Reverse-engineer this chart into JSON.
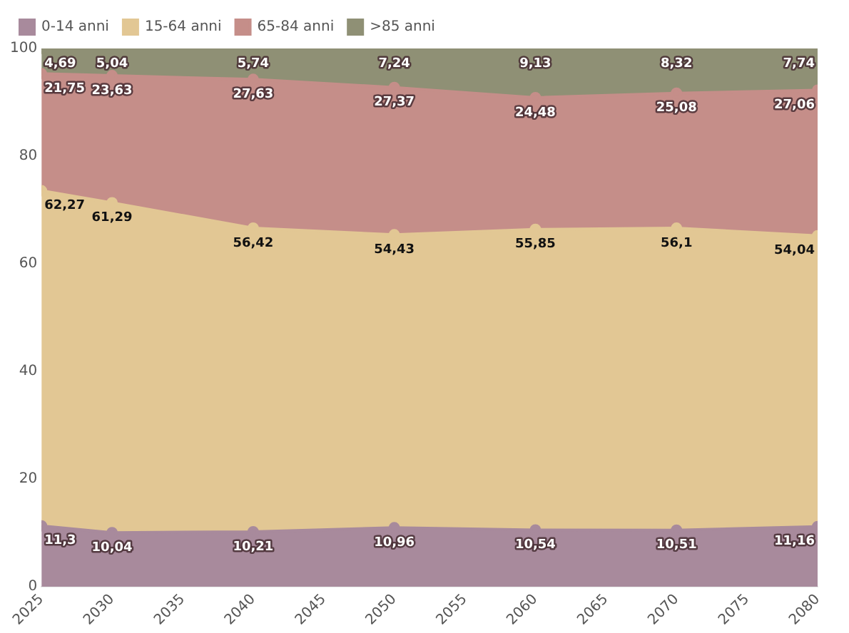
{
  "chart_data": {
    "type": "area",
    "stacked": true,
    "x": [
      2025,
      2030,
      2040,
      2050,
      2060,
      2070,
      2080
    ],
    "series": [
      {
        "name": "0-14 anni",
        "color": "#a88a9c",
        "values": [
          11.3,
          10.04,
          10.21,
          10.96,
          10.54,
          10.51,
          11.16
        ],
        "value_labels": [
          "11,3",
          "10,04",
          "10,21",
          "10,96",
          "10,54",
          "10,51",
          "11,16"
        ]
      },
      {
        "name": "15-64 anni",
        "color": "#e2c794",
        "values": [
          62.27,
          61.29,
          56.42,
          54.43,
          55.85,
          56.1,
          54.04
        ],
        "value_labels": [
          "62,27",
          "61,29",
          "56,42",
          "54,43",
          "55,85",
          "56,1",
          "54,04"
        ]
      },
      {
        "name": "65-84 anni",
        "color": "#c58e89",
        "values": [
          21.75,
          23.63,
          27.63,
          27.37,
          24.48,
          25.08,
          27.06
        ],
        "value_labels": [
          "21,75",
          "23,63",
          "27,63",
          "27,37",
          "24,48",
          "25,08",
          "27,06"
        ]
      },
      {
        "name": ">85 anni",
        "color": "#8f9075",
        "values": [
          4.69,
          5.04,
          5.74,
          7.24,
          9.13,
          8.32,
          7.74
        ],
        "value_labels": [
          "4,69",
          "5,04",
          "5,74",
          "7,24",
          "9,13",
          "8,32",
          "7,74"
        ]
      }
    ],
    "xlim": [
      2025,
      2080
    ],
    "xticks": [
      2025,
      2030,
      2035,
      2040,
      2045,
      2050,
      2055,
      2060,
      2065,
      2070,
      2075,
      2080
    ],
    "ylim": [
      0,
      100
    ],
    "yticks": [
      0,
      20,
      40,
      60,
      80,
      100
    ],
    "grid": false,
    "legend": "top left",
    "marker": "circle"
  }
}
